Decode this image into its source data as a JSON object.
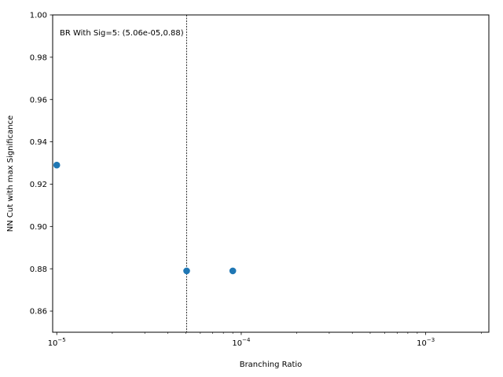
{
  "chart_data": {
    "type": "scatter",
    "xscale": "log",
    "xlabel": "Branching Ratio",
    "ylabel": "NN Cut with max Significance",
    "xlim": [
      9.5e-06,
      0.0022
    ],
    "ylim": [
      0.85,
      1.0
    ],
    "grid": false,
    "points": [
      {
        "x": 1e-05,
        "y": 0.929
      },
      {
        "x": 5.06e-05,
        "y": 0.879
      },
      {
        "x": 9e-05,
        "y": 0.879
      }
    ],
    "xticks": [
      {
        "value": 1e-05,
        "base": "10",
        "exp": "−5"
      },
      {
        "value": 0.0001,
        "base": "10",
        "exp": "−4"
      },
      {
        "value": 0.001,
        "base": "10",
        "exp": "−3"
      }
    ],
    "yticks": [
      {
        "value": 0.86,
        "label": "0.86"
      },
      {
        "value": 0.88,
        "label": "0.88"
      },
      {
        "value": 0.9,
        "label": "0.90"
      },
      {
        "value": 0.92,
        "label": "0.92"
      },
      {
        "value": 0.94,
        "label": "0.94"
      },
      {
        "value": 0.96,
        "label": "0.96"
      },
      {
        "value": 0.98,
        "label": "0.98"
      },
      {
        "value": 1.0,
        "label": "1.00"
      }
    ],
    "vline_x": 5.06e-05,
    "annotation": "BR With Sig=5: (5.06e-05,0.88)",
    "marker_color": "#1f77b4"
  }
}
